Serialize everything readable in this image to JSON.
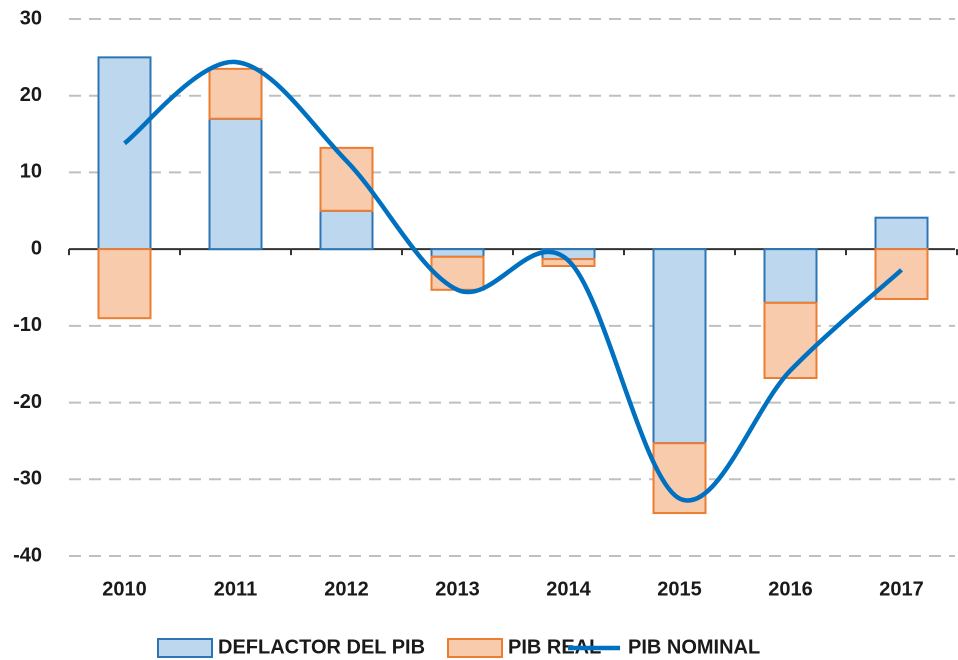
{
  "chart_data": {
    "type": "stacked_bar_line",
    "categories": [
      "2010",
      "2011",
      "2012",
      "2013",
      "2014",
      "2015",
      "2016",
      "2017"
    ],
    "series": [
      {
        "name": "DEFLACTOR DEL PIB",
        "type": "bar",
        "color": "#bdd7ee",
        "edge": "#2e75b6",
        "values": [
          25,
          17,
          5,
          -1,
          -1.3,
          -25.3,
          -7,
          4.1
        ]
      },
      {
        "name": "PIB REAL",
        "type": "bar",
        "color": "#f8cbad",
        "edge": "#ed7d31",
        "values": [
          -9,
          6.5,
          8.2,
          -4.3,
          -0.9,
          -9.1,
          -9.8,
          -6.5
        ]
      },
      {
        "name": "PIB NOMINAL",
        "type": "line",
        "color": "#0070c0",
        "values": [
          13.8,
          24.4,
          11.5,
          -5.3,
          -1.5,
          -32.5,
          -15.8,
          -2.7
        ]
      }
    ],
    "ylim": [
      -40,
      30
    ],
    "yticks": [
      -40,
      -30,
      -20,
      -10,
      0,
      10,
      20,
      30
    ],
    "grid": true,
    "legend": "bottom"
  }
}
